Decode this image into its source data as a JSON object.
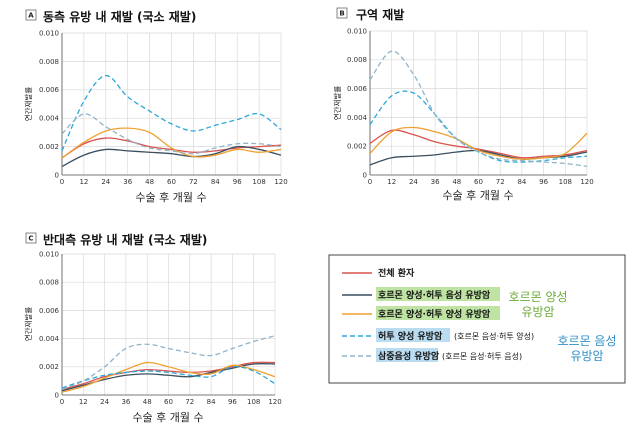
{
  "colors": {
    "all": "#d9534f",
    "hrpos_her2neg": "#3a4f5f",
    "hrpos_her2pos": "#f0a030",
    "her2pos_hrneg": "#2ea8d8",
    "tnbc": "#8fb3c8",
    "hl_green": "#bfe3a2",
    "hl_blue": "#b9dcf1",
    "grp_green": "#6aaa3a",
    "grp_blue": "#2e8fc8"
  },
  "legend": {
    "items": [
      {
        "key": "all",
        "label": "전체 환자",
        "dashed": false,
        "highlight": "",
        "sub": ""
      },
      {
        "key": "hrpos_her2neg",
        "label": "호르몬 양성·허투 음성 유방암",
        "dashed": false,
        "highlight": "green",
        "sub": ""
      },
      {
        "key": "hrpos_her2pos",
        "label": "호르몬 양성·허투 양성 유방암",
        "dashed": false,
        "highlight": "green",
        "sub": ""
      },
      {
        "key": "her2pos_hrneg",
        "label": "허투 양성 유방암",
        "dashed": true,
        "highlight": "blue",
        "sub": "(호르몬 음성·허투 양성)"
      },
      {
        "key": "tnbc",
        "label": "삼중음성 유방암",
        "dashed": true,
        "highlight": "blue",
        "sub": "(호르몬 음성·허투 음성)"
      }
    ],
    "group_hr_positive": [
      "호르몬 양성",
      "유방암"
    ],
    "group_hr_negative": [
      "호르몬 음성",
      "유방암"
    ]
  },
  "chart_data": [
    {
      "type": "line",
      "panel_label": "A",
      "title": "동측 유방 내 재발 (국소 재발)",
      "xlabel": "수술 후 개월 수",
      "ylabel": "연간재발률",
      "xlim": [
        0,
        120
      ],
      "ylim": [
        0,
        0.01
      ],
      "xticks": [
        0,
        12,
        24,
        36,
        48,
        60,
        72,
        84,
        96,
        108,
        120
      ],
      "yticks": [
        "0",
        "0.002",
        "0.004",
        "0.006",
        "0.008",
        "0.010"
      ],
      "yticks_values": [
        0,
        0.002,
        0.004,
        0.006,
        0.008,
        0.01
      ],
      "grid": true,
      "x": [
        0,
        12,
        24,
        36,
        48,
        60,
        72,
        84,
        96,
        108,
        120
      ],
      "series": [
        {
          "key": "all",
          "values": [
            0.0012,
            0.0022,
            0.0026,
            0.0024,
            0.002,
            0.0018,
            0.0016,
            0.0017,
            0.0019,
            0.002,
            0.0021
          ]
        },
        {
          "key": "hrpos_her2neg",
          "values": [
            0.0006,
            0.0014,
            0.0018,
            0.0017,
            0.0016,
            0.0015,
            0.0013,
            0.0015,
            0.002,
            0.0018,
            0.0014
          ]
        },
        {
          "key": "hrpos_her2pos",
          "values": [
            0.0012,
            0.0023,
            0.0031,
            0.0033,
            0.003,
            0.0019,
            0.0013,
            0.0014,
            0.0018,
            0.0016,
            0.0018
          ]
        },
        {
          "key": "her2pos_hrneg",
          "values": [
            0.0017,
            0.0052,
            0.007,
            0.0055,
            0.0045,
            0.0036,
            0.0031,
            0.0035,
            0.0039,
            0.0043,
            0.0032
          ]
        },
        {
          "key": "tnbc",
          "values": [
            0.0029,
            0.0043,
            0.0034,
            0.0025,
            0.0019,
            0.0017,
            0.0015,
            0.0019,
            0.0022,
            0.0022,
            0.002
          ]
        }
      ]
    },
    {
      "type": "line",
      "panel_label": "B",
      "title": "구역 재발",
      "xlabel": "수술 후 개월 수",
      "ylabel": "연간재발률",
      "xlim": [
        0,
        120
      ],
      "ylim": [
        0,
        0.01
      ],
      "xticks": [
        0,
        12,
        24,
        36,
        48,
        60,
        72,
        84,
        96,
        108,
        120
      ],
      "yticks": [
        "0",
        "0.002",
        "0.004",
        "0.006",
        "0.008",
        "0.010"
      ],
      "yticks_values": [
        0,
        0.002,
        0.004,
        0.006,
        0.008,
        0.01
      ],
      "grid": true,
      "x": [
        0,
        12,
        24,
        36,
        48,
        60,
        72,
        84,
        96,
        108,
        120
      ],
      "series": [
        {
          "key": "all",
          "values": [
            0.0022,
            0.0031,
            0.0028,
            0.0023,
            0.002,
            0.0018,
            0.0015,
            0.0012,
            0.0013,
            0.0014,
            0.0017
          ]
        },
        {
          "key": "hrpos_her2neg",
          "values": [
            0.0007,
            0.0012,
            0.0013,
            0.0014,
            0.0016,
            0.0017,
            0.0014,
            0.0011,
            0.0012,
            0.0013,
            0.0016
          ]
        },
        {
          "key": "hrpos_her2pos",
          "values": [
            0.0015,
            0.003,
            0.0033,
            0.003,
            0.0025,
            0.0017,
            0.0013,
            0.0011,
            0.0012,
            0.0015,
            0.0029
          ]
        },
        {
          "key": "her2pos_hrneg",
          "values": [
            0.0035,
            0.0055,
            0.0057,
            0.0042,
            0.0025,
            0.0016,
            0.001,
            0.0009,
            0.001,
            0.0012,
            0.0013
          ]
        },
        {
          "key": "tnbc",
          "values": [
            0.0066,
            0.0086,
            0.007,
            0.0042,
            0.0025,
            0.0016,
            0.0011,
            0.001,
            0.0009,
            0.0008,
            0.0006
          ]
        }
      ]
    },
    {
      "type": "line",
      "panel_label": "C",
      "title": "반대측 유방 내 재발 (국소 재발)",
      "xlabel": "수술 후 개월 수",
      "ylabel": "연간재발률",
      "xlim": [
        0,
        120
      ],
      "ylim": [
        0,
        0.01
      ],
      "xticks": [
        0,
        12,
        24,
        36,
        48,
        60,
        72,
        84,
        96,
        108,
        120
      ],
      "yticks": [
        "0",
        "0.002",
        "0.004",
        "0.006",
        "0.008",
        "0.010"
      ],
      "yticks_values": [
        0,
        0.002,
        0.004,
        0.006,
        0.008,
        0.01
      ],
      "grid": true,
      "x": [
        0,
        12,
        24,
        36,
        48,
        60,
        72,
        84,
        96,
        108,
        120
      ],
      "series": [
        {
          "key": "all",
          "values": [
            0.0004,
            0.0008,
            0.0013,
            0.0016,
            0.0018,
            0.0017,
            0.0016,
            0.0017,
            0.002,
            0.0023,
            0.0023
          ]
        },
        {
          "key": "hrpos_her2neg",
          "values": [
            0.0003,
            0.0007,
            0.0011,
            0.0014,
            0.0015,
            0.0014,
            0.0013,
            0.0016,
            0.0019,
            0.0022,
            0.0022
          ]
        },
        {
          "key": "hrpos_her2pos",
          "values": [
            0.0002,
            0.0006,
            0.0012,
            0.0018,
            0.0023,
            0.002,
            0.0016,
            0.0015,
            0.0021,
            0.0018,
            0.0013
          ]
        },
        {
          "key": "her2pos_hrneg",
          "values": [
            0.0005,
            0.001,
            0.0014,
            0.0016,
            0.0017,
            0.0016,
            0.0014,
            0.0013,
            0.002,
            0.0017,
            0.0008
          ]
        },
        {
          "key": "tnbc",
          "values": [
            0.0004,
            0.001,
            0.002,
            0.0033,
            0.0036,
            0.0033,
            0.003,
            0.0028,
            0.0033,
            0.0038,
            0.0042
          ]
        }
      ]
    }
  ]
}
